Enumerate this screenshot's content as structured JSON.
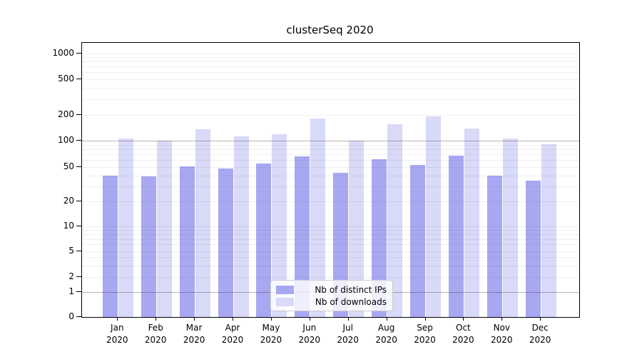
{
  "title": "clusterSeq 2020",
  "colors": {
    "bar_distinct_ips": "#a8a8f2",
    "bar_downloads": "#d9d9f8",
    "grid_minor": "rgba(0,0,0,0.06)",
    "grid_emphasized": "rgba(0,0,0,0.28)",
    "axis": "#000000",
    "legend_border": "#cccccc",
    "legend_background": "rgba(255,255,255,0.8)"
  },
  "legend": {
    "entries": [
      "Nb of distinct IPs",
      "Nb of downloads"
    ]
  },
  "chart_data": {
    "type": "bar",
    "title": "clusterSeq 2020",
    "categories": [
      "Jan",
      "Feb",
      "Mar",
      "Apr",
      "May",
      "Jun",
      "Jul",
      "Aug",
      "Sep",
      "Oct",
      "Nov",
      "Dec"
    ],
    "category_year": "2020",
    "series": [
      {
        "name": "Nb of distinct IPs",
        "color": "#a8a8f2",
        "values": [
          40,
          39,
          51,
          48,
          55,
          66,
          43,
          62,
          53,
          67,
          40,
          35
        ]
      },
      {
        "name": "Nb of downloads",
        "color": "#d9d9f8",
        "values": [
          105,
          100,
          137,
          113,
          118,
          183,
          100,
          155,
          191,
          140,
          105,
          91
        ]
      }
    ],
    "xlabel": "",
    "ylabel": "",
    "yscale": "log-like (symlog: linear 0-1 segment, log above 1)",
    "yticks": [
      0,
      1,
      2,
      5,
      10,
      20,
      50,
      100,
      200,
      500,
      1000
    ],
    "ylim": [
      0,
      1300
    ],
    "grid": "horizontal minor log gridlines; emphasized gridlines at y=1 and y=100",
    "legend_position": "lower center inside plot"
  }
}
